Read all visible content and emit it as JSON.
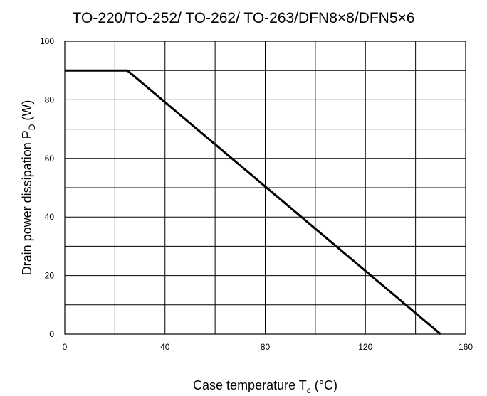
{
  "chart_data": {
    "type": "line",
    "title": "TO-220/TO-252/ TO-262/ TO-263/DFN8×8/DFN5×6",
    "xlabel": {
      "main": "Case temperature T",
      "sub": "c",
      "unit": " (°C)"
    },
    "ylabel": {
      "main": "Drain power dissipation P",
      "sub": "D",
      "unit": " (W)"
    },
    "xlim": [
      0,
      160
    ],
    "ylim": [
      0,
      100
    ],
    "x_ticks": [
      0,
      40,
      80,
      120,
      160
    ],
    "y_ticks": [
      0,
      20,
      40,
      60,
      80,
      100
    ],
    "grid": true,
    "series": [
      {
        "x": [
          0,
          25,
          150
        ],
        "y": [
          90,
          90,
          0
        ]
      }
    ]
  }
}
